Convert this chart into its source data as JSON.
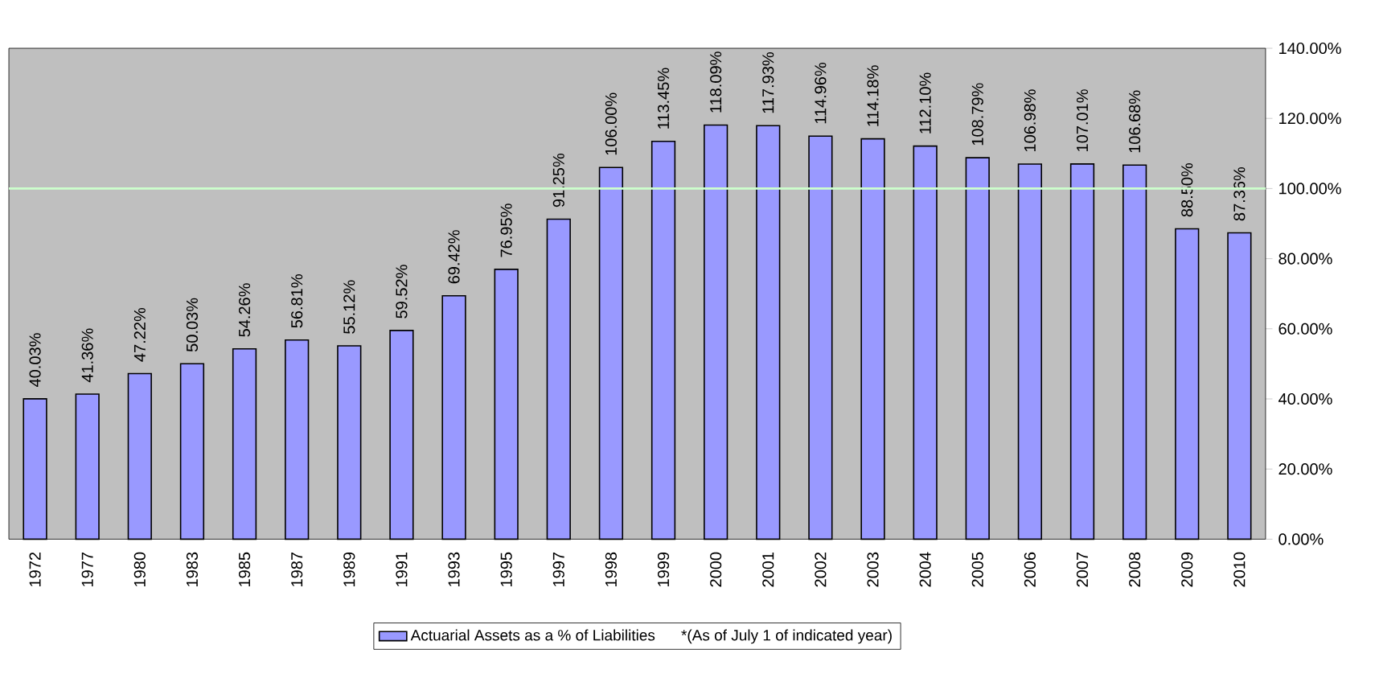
{
  "chart_data": {
    "type": "bar",
    "categories": [
      "1972",
      "1977",
      "1980",
      "1983",
      "1985",
      "1987",
      "1989",
      "1991",
      "1993",
      "1995",
      "1997",
      "1998",
      "1999",
      "2000",
      "2001",
      "2002",
      "2003",
      "2004",
      "2005",
      "2006",
      "2007",
      "2008",
      "2009",
      "2010"
    ],
    "series": [
      {
        "name": "Actuarial Assets as a % of Liabilities",
        "color": "#9999ff",
        "values": [
          40.03,
          41.36,
          47.22,
          50.03,
          54.26,
          56.81,
          55.12,
          59.52,
          69.42,
          76.95,
          91.25,
          106.0,
          113.45,
          118.09,
          117.93,
          114.96,
          114.18,
          112.1,
          108.79,
          106.98,
          107.01,
          106.68,
          88.5,
          87.36
        ],
        "value_labels": [
          "40.03%",
          "41.36%",
          "47.22%",
          "50.03%",
          "54.26%",
          "56.81%",
          "55.12%",
          "59.52%",
          "69.42%",
          "76.95%",
          "91.25%",
          "106.00%",
          "113.45%",
          "118.09%",
          "117.93%",
          "114.96%",
          "114.18%",
          "112.10%",
          "108.79%",
          "106.98%",
          "107.01%",
          "106.68%",
          "88.50%",
          "87.36%"
        ]
      }
    ],
    "ylim": [
      0,
      140
    ],
    "yticks": [
      {
        "value": 0,
        "label": "0.00%"
      },
      {
        "value": 20,
        "label": "20.00%"
      },
      {
        "value": 40,
        "label": "40.00%"
      },
      {
        "value": 60,
        "label": "60.00%"
      },
      {
        "value": 80,
        "label": "80.00%"
      },
      {
        "value": 100,
        "label": "100.00%"
      },
      {
        "value": 120,
        "label": "120.00%"
      },
      {
        "value": 140,
        "label": "140.00%"
      }
    ],
    "ref_lines": [
      {
        "axis": "y",
        "value": 100,
        "color": "#ccffcc"
      }
    ],
    "annotations": [
      "*(As of July 1 of indicated year)"
    ],
    "legend": "bottom",
    "grid": false
  }
}
